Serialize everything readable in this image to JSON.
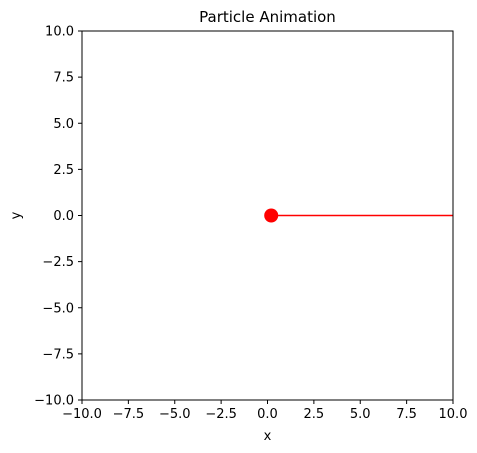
{
  "chart_data": {
    "type": "scatter",
    "title": "Particle Animation",
    "xlabel": "x",
    "ylabel": "y",
    "xlim": [
      -10,
      10
    ],
    "ylim": [
      -10,
      10
    ],
    "xticks": [
      -10,
      -7.5,
      -5,
      -2.5,
      0,
      2.5,
      5,
      7.5,
      10
    ],
    "yticks": [
      -10,
      -7.5,
      -5,
      -2.5,
      0,
      2.5,
      5,
      7.5,
      10
    ],
    "xtick_labels": [
      "−10.0",
      "−7.5",
      "−5.0",
      "−2.5",
      "0.0",
      "2.5",
      "5.0",
      "7.5",
      "10.0"
    ],
    "ytick_labels": [
      "−10.0",
      "−7.5",
      "−5.0",
      "−2.5",
      "0.0",
      "2.5",
      "5.0",
      "7.5",
      "10.0"
    ],
    "grid": false,
    "series": [
      {
        "kind": "point",
        "x": [
          0.2
        ],
        "y": [
          0
        ],
        "color": "#ff0000"
      },
      {
        "kind": "trail",
        "x": [
          0.2,
          10
        ],
        "y": [
          0,
          0
        ],
        "color": "#ff0000"
      }
    ]
  }
}
